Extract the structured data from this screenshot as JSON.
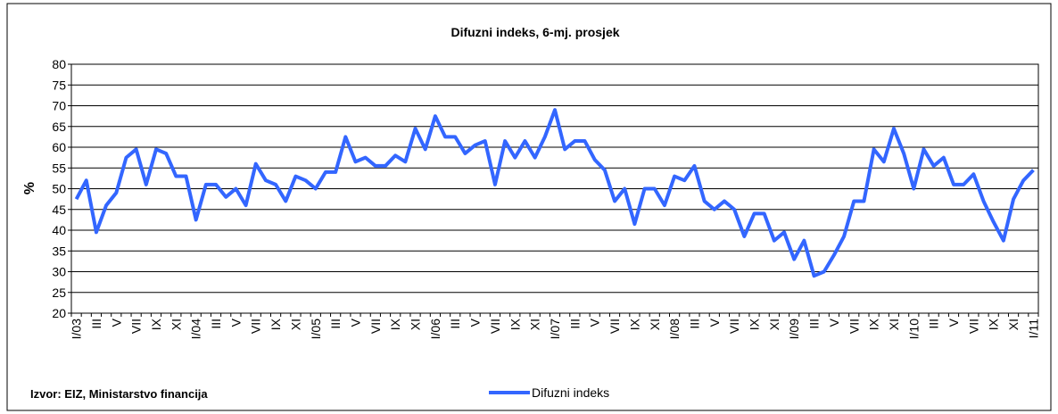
{
  "chart_data": {
    "type": "line",
    "title": "Difuzni indeks, 6-mj. prosjek",
    "y_label": "%",
    "source": "Izvor: EIZ, Ministarstvo financija",
    "categories": [
      "I/03",
      null,
      "III",
      null,
      "V",
      null,
      "VII",
      null,
      "IX",
      null,
      "XI",
      null,
      "I/04",
      null,
      "III",
      null,
      "V",
      null,
      "VII",
      null,
      "IX",
      null,
      "XI",
      null,
      "I/05",
      null,
      "III",
      null,
      "V",
      null,
      "VII",
      null,
      "IX",
      null,
      "XI",
      null,
      "I/06",
      null,
      "III",
      null,
      "V",
      null,
      "VII",
      null,
      "IX",
      null,
      "XI",
      null,
      "I/07",
      null,
      "III",
      null,
      "V",
      null,
      "VII",
      null,
      "IX",
      null,
      "XI",
      null,
      "I/08",
      null,
      "III",
      null,
      "V",
      null,
      "VII",
      null,
      "IX",
      null,
      "XI",
      null,
      "I/09",
      null,
      "III",
      null,
      "V",
      null,
      "VII",
      null,
      "IX",
      null,
      "XI",
      null,
      "I/10",
      null,
      "III",
      null,
      "V",
      null,
      "VII",
      null,
      "IX",
      null,
      "XI",
      null,
      "I/11"
    ],
    "series": [
      {
        "name": "Difuzni indeks",
        "color": "#3366ff",
        "values": [
          47.5,
          52,
          39.5,
          46,
          49,
          57.5,
          59.5,
          51,
          59.5,
          58.5,
          53,
          53,
          42.5,
          51,
          51,
          48,
          50,
          46,
          56,
          52,
          51,
          47,
          53,
          52,
          50,
          54,
          54,
          62.5,
          56.5,
          57.5,
          55.5,
          55.5,
          58,
          56.5,
          64.5,
          59.5,
          67.5,
          62.5,
          62.5,
          58.5,
          60.5,
          61.5,
          51,
          61.5,
          57.5,
          61.5,
          57.5,
          62.5,
          69,
          59.5,
          61.5,
          61.5,
          57,
          54.5,
          47,
          50,
          41.5,
          50,
          50,
          46,
          53,
          52,
          55.5,
          47,
          45,
          47,
          45,
          38.5,
          44,
          44,
          37.5,
          39.5,
          33,
          37.5,
          29,
          30,
          34,
          38.5,
          47,
          47,
          59.5,
          56.5,
          64.5,
          58.5,
          50,
          59.5,
          55.5,
          57.5,
          51,
          51,
          53.5,
          47,
          42,
          37.5,
          47.5,
          52,
          54.5
        ]
      }
    ],
    "ylim": [
      20,
      80
    ],
    "yticks": [
      20,
      25,
      30,
      35,
      40,
      45,
      50,
      55,
      60,
      65,
      70,
      75,
      80
    ],
    "grid": true,
    "legend": "bottom"
  }
}
